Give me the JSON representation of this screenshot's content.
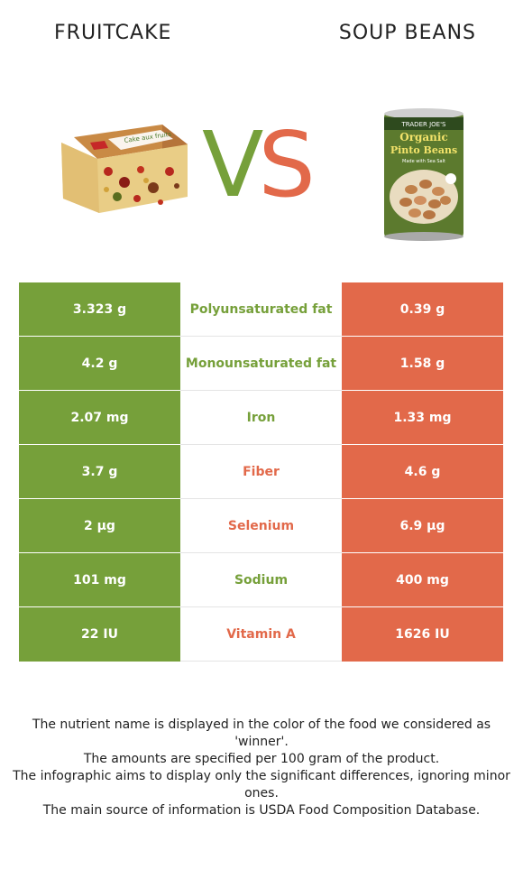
{
  "header": {
    "left_food": "FRUITCAKE",
    "right_food": "SOUP BEANS",
    "vs_v": "V",
    "vs_s": "S"
  },
  "colors": {
    "left": "#76a03a",
    "right": "#e2694a"
  },
  "rows": [
    {
      "nutrient": "Polyunsaturated fat",
      "left": "3.323 g",
      "right": "0.39 g",
      "winner": "left"
    },
    {
      "nutrient": "Monounsaturated fat",
      "left": "4.2 g",
      "right": "1.58 g",
      "winner": "left"
    },
    {
      "nutrient": "Iron",
      "left": "2.07 mg",
      "right": "1.33 mg",
      "winner": "left"
    },
    {
      "nutrient": "Fiber",
      "left": "3.7 g",
      "right": "4.6 g",
      "winner": "right"
    },
    {
      "nutrient": "Selenium",
      "left": "2 µg",
      "right": "6.9 µg",
      "winner": "right"
    },
    {
      "nutrient": "Sodium",
      "left": "101 mg",
      "right": "400 mg",
      "winner": "left"
    },
    {
      "nutrient": "Vitamin A",
      "left": "22 IU",
      "right": "1626 IU",
      "winner": "right"
    }
  ],
  "can_label": {
    "brand": "TRADER JOE'S",
    "line1": "Organic",
    "line2": "Pinto Beans",
    "line3": "Made with Sea Salt"
  },
  "cake_label": "Cake aux fruits",
  "notes": [
    "The nutrient name is displayed in the color of the food we considered as 'winner'.",
    "The amounts are specified per 100 gram of the product.",
    "The infographic aims to display only the significant differences, ignoring minor ones.",
    "The main source of information is USDA Food Composition Database."
  ]
}
